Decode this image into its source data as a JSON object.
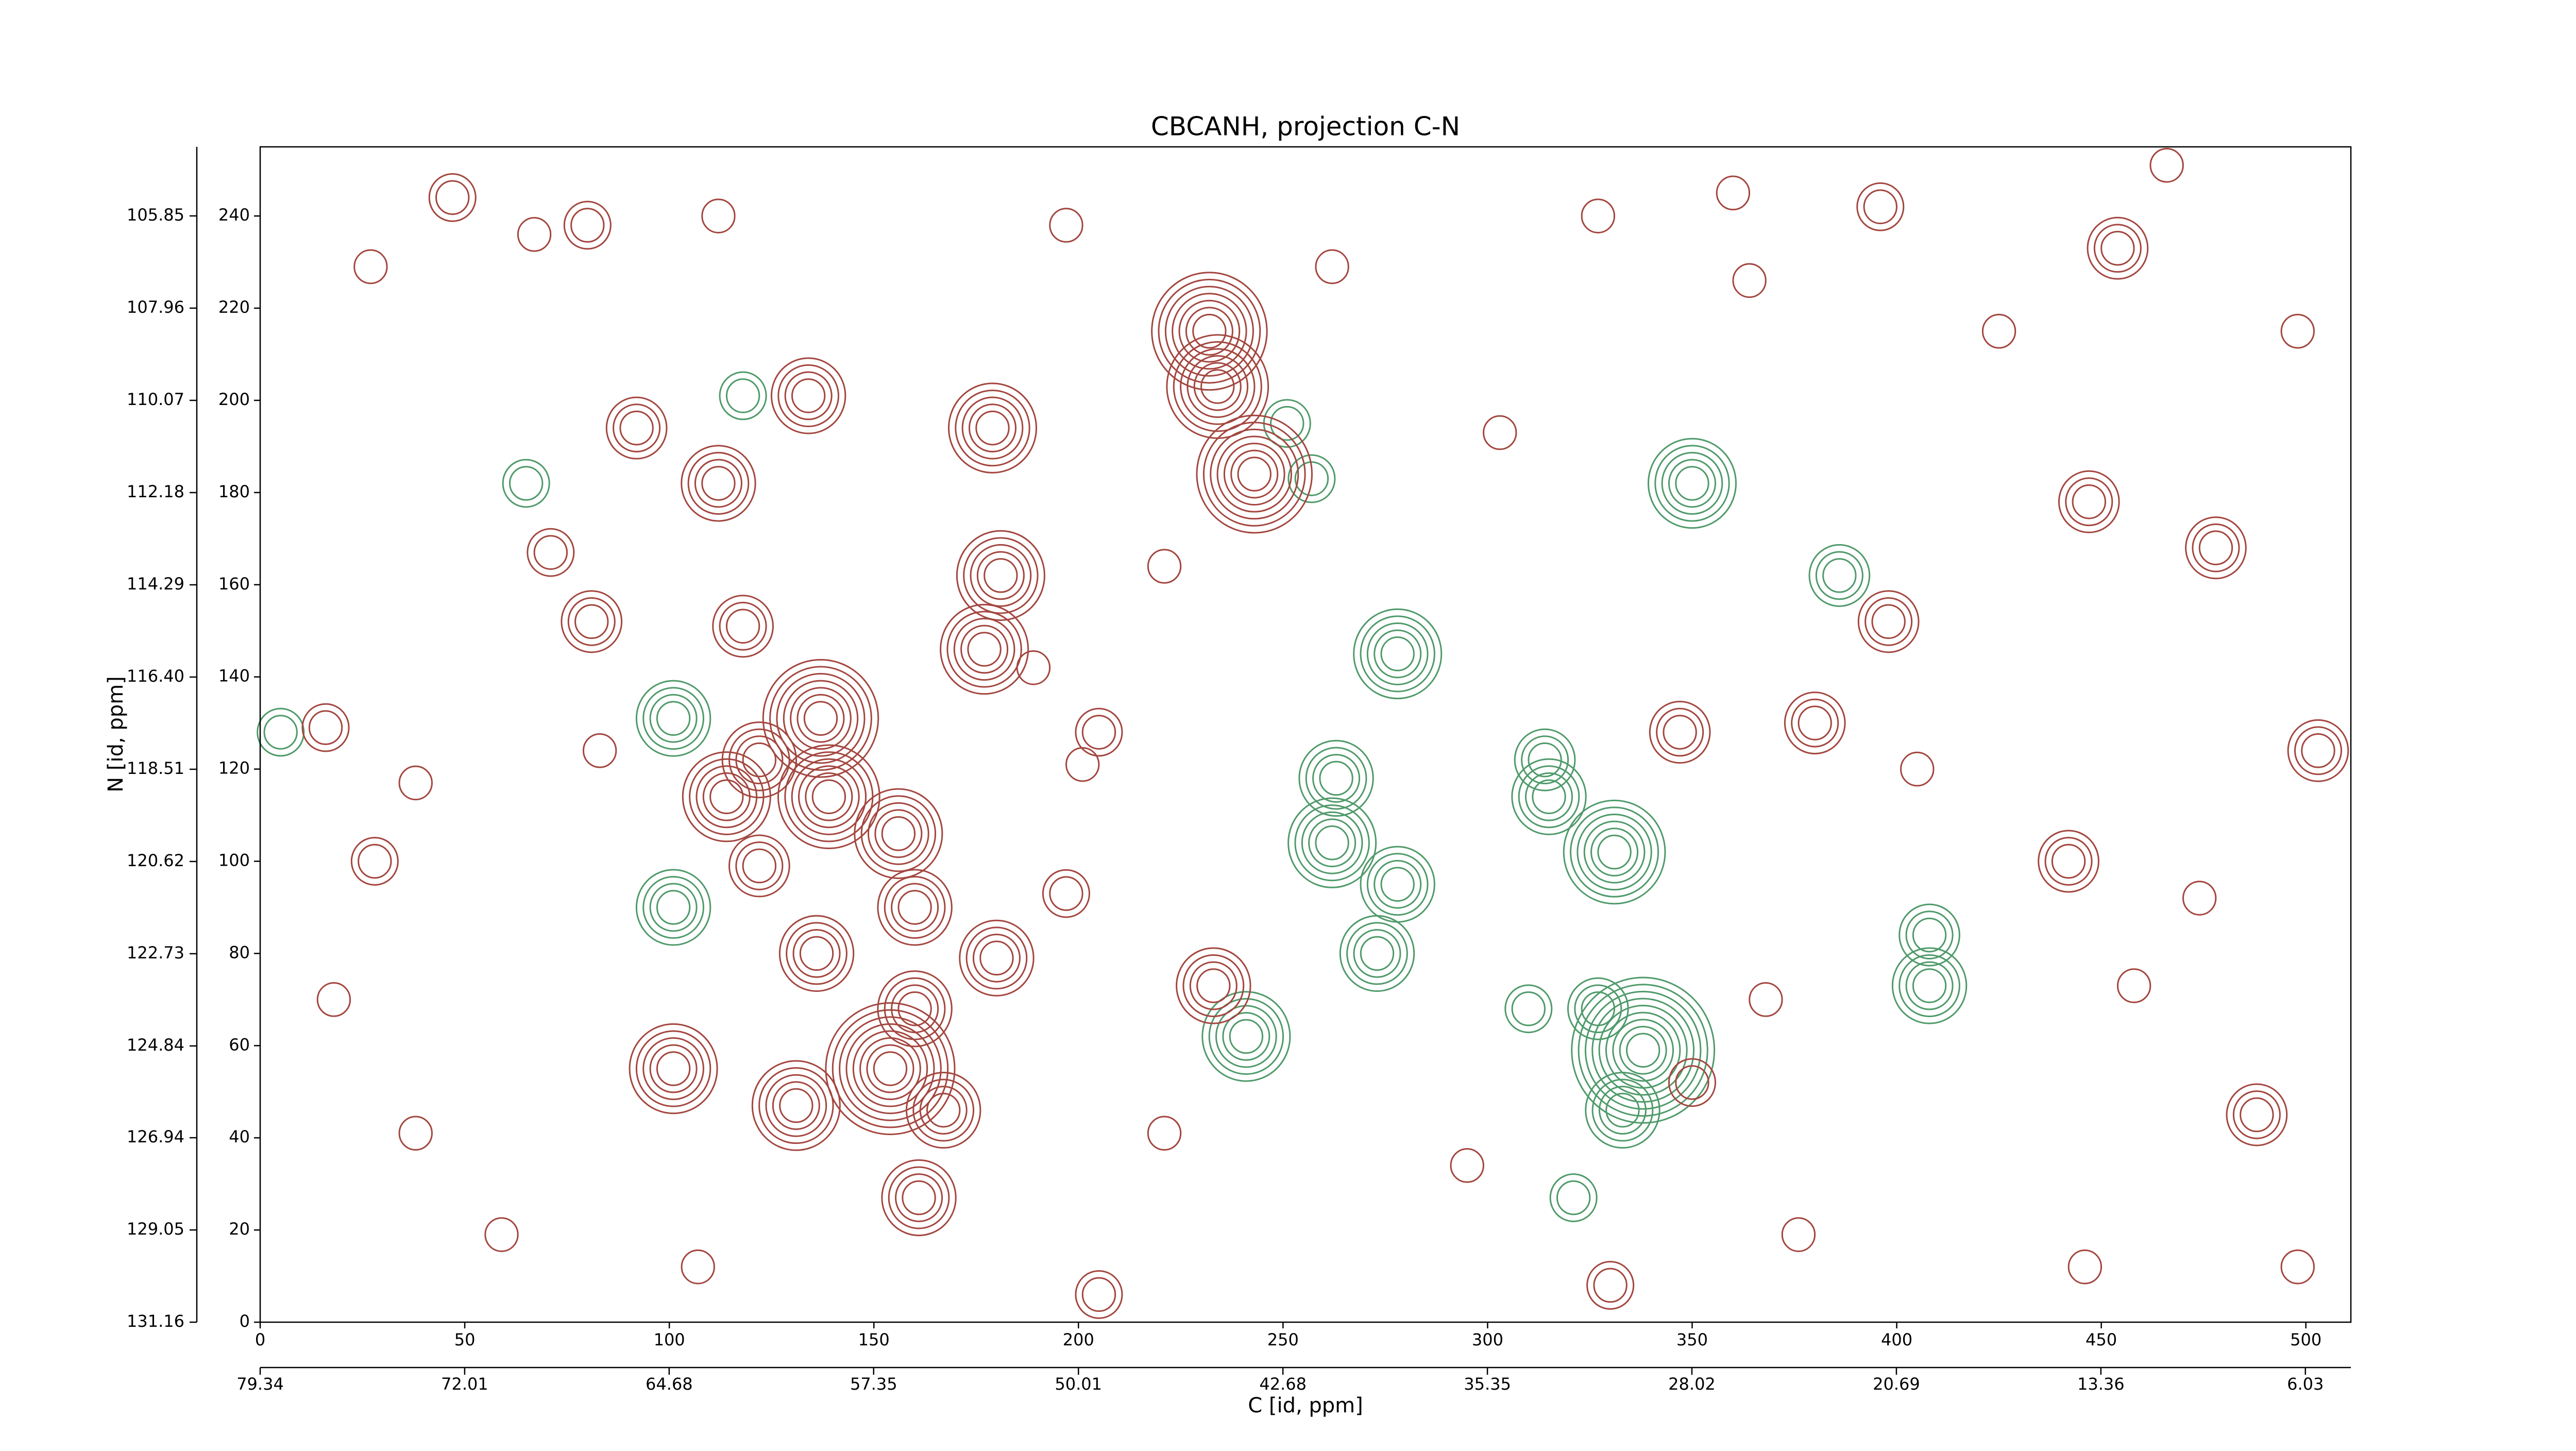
{
  "chart_data": {
    "type": "contour",
    "title": "CBCANH, projection C-N",
    "xlabel": "C [id, ppm]",
    "ylabel": "N [id, ppm]",
    "xlim": [
      0,
      511
    ],
    "ylim": [
      0,
      255
    ],
    "xticks": [
      0,
      50,
      100,
      150,
      200,
      250,
      300,
      350,
      400,
      450,
      500
    ],
    "yticks": [
      0,
      20,
      40,
      60,
      80,
      100,
      120,
      140,
      160,
      180,
      200,
      220,
      240
    ],
    "x2lim": [
      79.34,
      4.4
    ],
    "x2ticks": [
      79.34,
      72.01,
      64.68,
      57.35,
      50.01,
      42.68,
      35.35,
      28.02,
      20.69,
      13.36,
      6.03
    ],
    "y2lim": [
      131.16,
      104.27
    ],
    "y2ticks": [
      131.16,
      129.05,
      126.94,
      124.84,
      122.73,
      120.62,
      118.51,
      {
        "value": 116.4,
        "label": "116.40"
      },
      114.29,
      112.18,
      110.07,
      107.96,
      105.85
    ],
    "positive_color": "#a3463f",
    "negative_color": "#4f9a6a",
    "peaks": {
      "x": [
        101,
        101,
        278,
        263,
        262,
        278,
        273,
        241,
        315,
        314,
        331,
        338,
        333,
        350,
        408,
        408,
        386,
        65,
        118,
        321,
        327,
        310,
        251,
        5,
        257,
        232,
        234,
        243,
        137,
        139,
        177,
        181,
        179,
        134,
        112,
        114,
        122,
        118,
        154,
        101,
        131,
        167,
        160,
        160,
        156,
        180,
        136,
        122,
        161,
        233,
        398,
        454,
        447,
        478,
        347,
        380,
        442,
        488,
        205,
        330,
        350,
        47,
        80,
        396,
        205,
        503,
        16,
        71,
        81,
        92,
        197,
        28,
        27,
        67,
        112,
        197,
        262,
        327,
        360,
        466,
        498,
        425,
        18,
        38,
        59,
        107,
        221,
        376,
        446,
        498,
        458,
        474,
        295,
        201,
        189,
        83,
        38,
        405,
        368,
        221,
        303,
        364
      ],
      "y": [
        131,
        90,
        145,
        118,
        104,
        95,
        80,
        62,
        114,
        122,
        102,
        59,
        46,
        182,
        84,
        73,
        162,
        182,
        201,
        27,
        68,
        68,
        195,
        128,
        183,
        215,
        203,
        184,
        131,
        114,
        146,
        162,
        194,
        201,
        182,
        114,
        122,
        151,
        55,
        55,
        47,
        46,
        68,
        90,
        106,
        79,
        80,
        99,
        27,
        73,
        152,
        233,
        178,
        168,
        128,
        130,
        100,
        45,
        6,
        8,
        52,
        244,
        238,
        242,
        128,
        124,
        129,
        167,
        152,
        194,
        93,
        100,
        229,
        236,
        240,
        238,
        229,
        240,
        245,
        251,
        215,
        215,
        70,
        41,
        19,
        12,
        41,
        19,
        12,
        12,
        73,
        92,
        34,
        121,
        142,
        124,
        117,
        120,
        70,
        164,
        193,
        226
      ],
      "levels": [
        -4,
        -4,
        -5,
        -4,
        -5,
        -4,
        -4,
        -5,
        -4,
        -3,
        -6,
        -9,
        -4,
        -5,
        -3,
        -4,
        -3,
        -2,
        -2,
        -2,
        -3,
        -2,
        -2,
        -2,
        -2,
        7,
        6,
        7,
        7,
        6,
        5,
        5,
        5,
        4,
        4,
        5,
        4,
        3,
        8,
        5,
        5,
        4,
        4,
        4,
        5,
        4,
        4,
        3,
        4,
        4,
        3,
        3,
        3,
        3,
        3,
        3,
        3,
        3,
        2,
        2,
        2,
        2,
        2,
        2,
        2,
        3,
        2,
        2,
        3,
        3,
        2,
        2,
        1,
        1,
        1,
        1,
        1,
        1,
        1,
        1,
        1,
        1,
        1,
        1,
        1,
        1,
        1,
        1,
        1,
        1,
        1,
        1,
        1,
        1,
        1,
        1,
        1,
        1,
        1,
        1,
        1,
        1
      ]
    }
  }
}
